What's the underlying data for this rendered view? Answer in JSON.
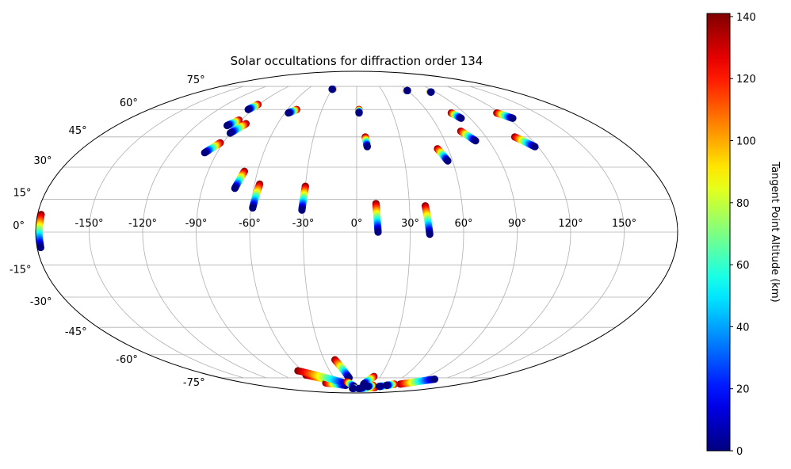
{
  "chart_data": {
    "type": "scatter",
    "projection": "mollweide",
    "title": "Solar occultations for diffraction order 134",
    "longitude_ticks": [
      -150,
      -120,
      -90,
      -60,
      -30,
      0,
      30,
      60,
      90,
      120,
      150
    ],
    "longitude_tick_labels": [
      "-150°",
      "-120°",
      "-90°",
      "-60°",
      "-30°",
      "0°",
      "30°",
      "60°",
      "90°",
      "120°",
      "150°"
    ],
    "latitude_ticks": [
      -75,
      -60,
      -45,
      -30,
      -15,
      0,
      15,
      30,
      45,
      60,
      75
    ],
    "latitude_tick_labels": [
      "-75°",
      "-60°",
      "-45°",
      "-30°",
      "-15°",
      "0°",
      "15°",
      "30°",
      "45°",
      "60°",
      "75°"
    ],
    "grid": true,
    "colorbar": {
      "label": "Tangent Point Altitude (km)",
      "colormap": "jet",
      "range": [
        0,
        141
      ],
      "ticks": [
        0,
        20,
        40,
        60,
        80,
        100,
        120,
        140
      ],
      "tick_labels": [
        "0",
        "20",
        "40",
        "60",
        "80",
        "100",
        "120",
        "140"
      ]
    },
    "tracks": [
      {
        "lon_start": -178,
        "lat_start": 8,
        "lon_end": -178,
        "lat_end": -7
      },
      {
        "lon_start": -91,
        "lat_start": 63,
        "lon_end": -94,
        "lat_end": 60
      },
      {
        "lon_start": -92,
        "lat_start": 54,
        "lon_end": -97,
        "lat_end": 51
      },
      {
        "lon_start": -84,
        "lat_start": 52,
        "lon_end": -90,
        "lat_end": 47
      },
      {
        "lon_start": -92,
        "lat_start": 42,
        "lon_end": -98,
        "lat_end": 37
      },
      {
        "lon_start": -52,
        "lat_start": 60,
        "lon_end": -57,
        "lat_end": 58
      },
      {
        "lon_start": -29,
        "lat_start": 73,
        "lon_end": -30,
        "lat_end": 73
      },
      {
        "lon_start": -68,
        "lat_start": 28,
        "lon_end": -71,
        "lat_end": 20
      },
      {
        "lon_start": -57,
        "lat_start": 22,
        "lon_end": -59,
        "lat_end": 11
      },
      {
        "lon_start": -30,
        "lat_start": 21,
        "lon_end": -31,
        "lat_end": 10
      },
      {
        "lon_start": 2,
        "lat_start": 60,
        "lon_end": 2,
        "lat_end": 58
      },
      {
        "lon_start": 6,
        "lat_start": 45,
        "lon_end": 7,
        "lat_end": 40
      },
      {
        "lon_start": 11,
        "lat_start": 13,
        "lon_end": 12,
        "lat_end": 0
      },
      {
        "lon_start": 39,
        "lat_start": 12,
        "lon_end": 41,
        "lat_end": -1
      },
      {
        "lon_start": 59,
        "lat_start": 72,
        "lon_end": 60,
        "lat_end": 72
      },
      {
        "lon_start": 84,
        "lat_start": 71,
        "lon_end": 85,
        "lat_end": 71
      },
      {
        "lon_start": 53,
        "lat_start": 39,
        "lon_end": 57,
        "lat_end": 33
      },
      {
        "lon_start": 79,
        "lat_start": 58,
        "lon_end": 83,
        "lat_end": 55
      },
      {
        "lon_start": 75,
        "lat_start": 48,
        "lon_end": 81,
        "lat_end": 43
      },
      {
        "lon_start": 117,
        "lat_start": 58,
        "lon_end": 124,
        "lat_end": 55
      },
      {
        "lon_start": 110,
        "lat_start": 45,
        "lon_end": 118,
        "lat_end": 40
      },
      {
        "lon_start": -62,
        "lat_start": -73,
        "lon_end": -22,
        "lat_end": -80
      },
      {
        "lon_start": -50,
        "lat_start": -79,
        "lon_end": -20,
        "lat_end": -81
      },
      {
        "lon_start": -65,
        "lat_start": -70,
        "lon_end": -15,
        "lat_end": -80
      },
      {
        "lon_start": -20,
        "lat_start": -63,
        "lon_end": -10,
        "lat_end": -75
      },
      {
        "lon_start": -15,
        "lat_start": -78,
        "lon_end": -5,
        "lat_end": -82
      },
      {
        "lon_start": 0,
        "lat_start": -84,
        "lon_end": -10,
        "lat_end": -84
      },
      {
        "lon_start": 40,
        "lat_start": -83,
        "lon_end": 5,
        "lat_end": -84
      },
      {
        "lon_start": 20,
        "lat_start": -82,
        "lon_end": 12,
        "lat_end": -83
      },
      {
        "lon_start": 22,
        "lat_start": -74,
        "lon_end": 12,
        "lat_end": -80
      },
      {
        "lon_start": 30,
        "lat_start": -81,
        "lon_end": 22,
        "lat_end": -82
      },
      {
        "lon_start": 57,
        "lat_start": -81,
        "lon_end": 45,
        "lat_end": -82
      },
      {
        "lon_start": 75,
        "lat_start": -80,
        "lon_end": 108,
        "lat_end": -76
      },
      {
        "lon_start": 65,
        "lat_start": -80,
        "lon_end": 55,
        "lat_end": -81
      }
    ]
  }
}
